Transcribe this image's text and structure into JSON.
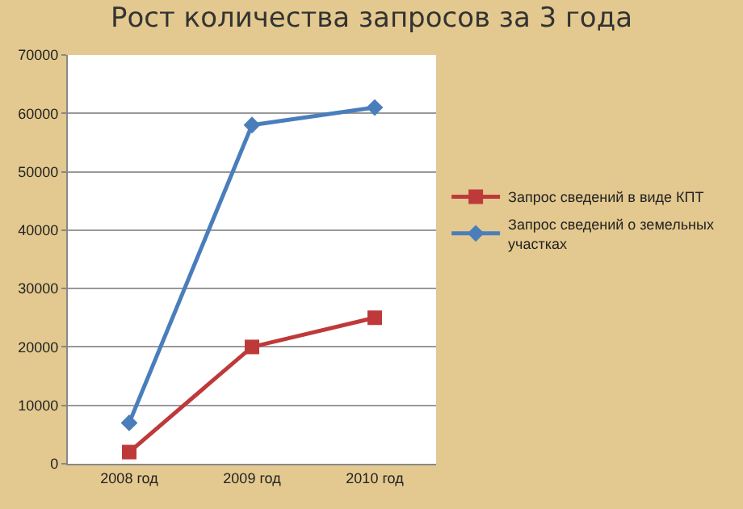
{
  "chart_data": {
    "type": "line",
    "title": "Рост количества запросов за 3 года",
    "categories": [
      "2008 год",
      "2009 год",
      "2010 год"
    ],
    "series": [
      {
        "name": "Запрос сведений в виде КПТ",
        "color": "#be3a3a",
        "marker": "square",
        "values": [
          2000,
          20000,
          25000
        ]
      },
      {
        "name": "Запрос сведений о земельных участках",
        "color": "#4a7ebb",
        "marker": "diamond",
        "values": [
          7000,
          58000,
          61000
        ]
      }
    ],
    "ylim": [
      0,
      70000
    ],
    "yticks": [
      0,
      10000,
      20000,
      30000,
      40000,
      50000,
      60000,
      70000
    ],
    "grid": "y",
    "legend": "right"
  }
}
